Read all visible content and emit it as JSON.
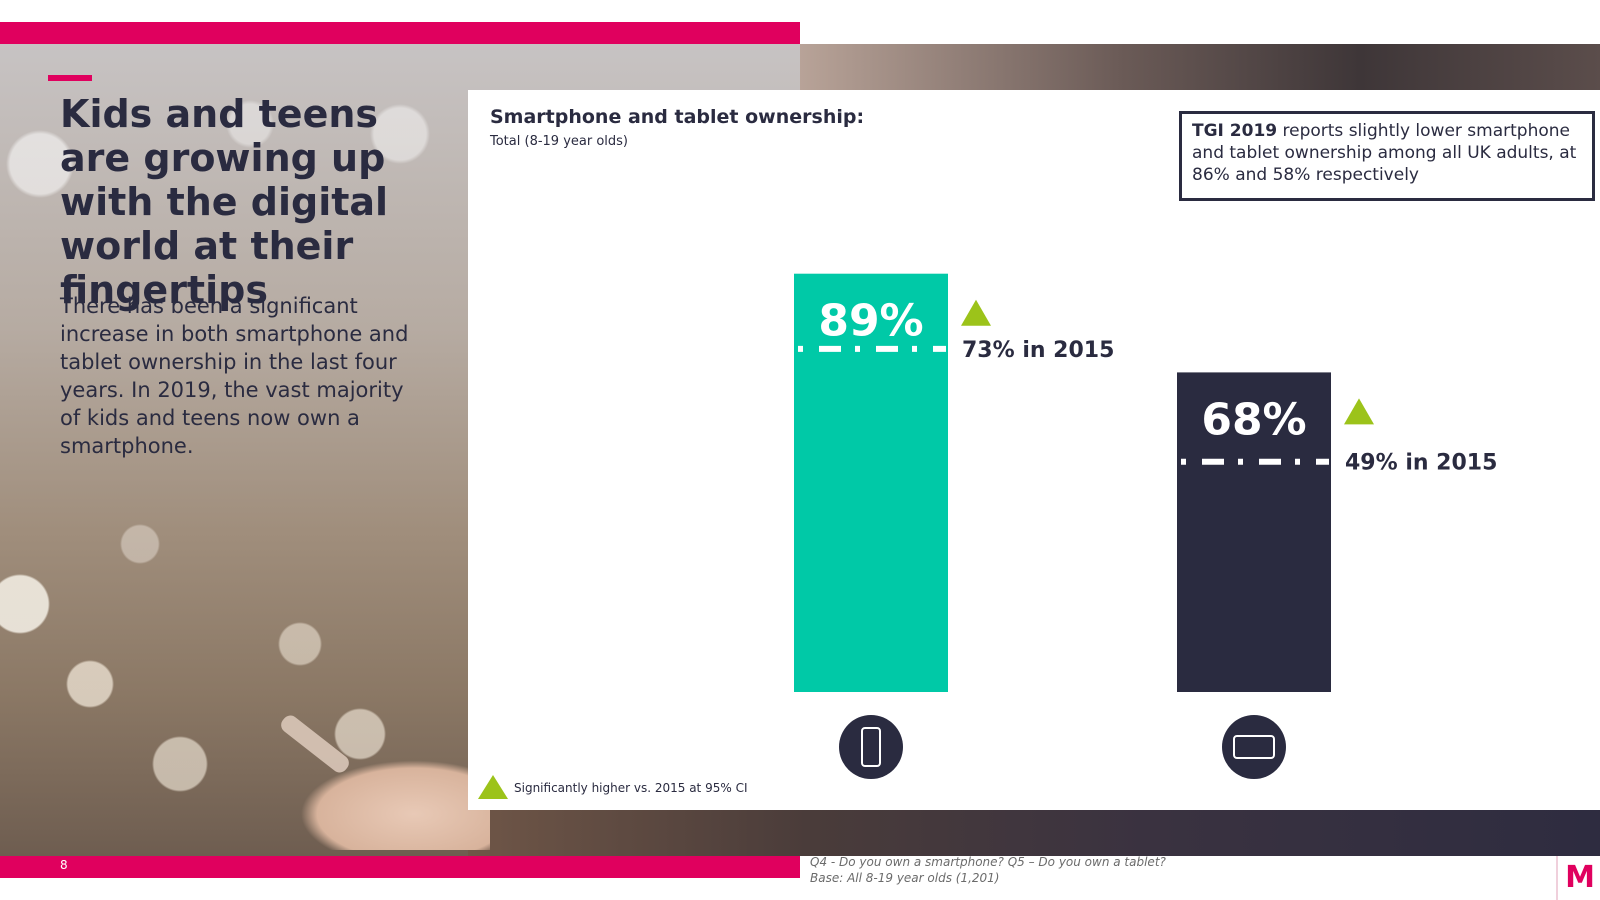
{
  "slide": {
    "headline": "Kids and teens are growing up with the digital world at their fingertips",
    "body": "There has been a significant increase in both smartphone and tablet ownership in the last four years.  In 2019, the vast majority of kids and teens now own a smartphone.",
    "page_number": "8",
    "logo_letter": "M"
  },
  "callout": {
    "bold": "TGI 2019",
    "text": " reports slightly lower smartphone and tablet ownership among all UK adults, at 86% and 58% respectively"
  },
  "legend": {
    "significance_label": "Significantly higher vs. 2015 at 95% CI"
  },
  "footnote": {
    "line1": "Q4 - Do you own a smartphone? Q5 – Do you own a tablet?",
    "line2": "Base: All 8-19 year olds (1,201)"
  },
  "colors": {
    "brand_pink": "#e0005e",
    "smartphone_bar": "#00c9a7",
    "tablet_bar": "#2a2b40",
    "significance_marker": "#9cc31a"
  },
  "chart_data": {
    "type": "bar",
    "title": "Smartphone and tablet ownership:",
    "subtitle": "Total (8-19 year olds)",
    "categories": [
      "Smartphone",
      "Tablet"
    ],
    "category_icons": [
      "smartphone-icon",
      "tablet-icon"
    ],
    "values": [
      89,
      68
    ],
    "value_labels": [
      "89%",
      "68%"
    ],
    "comparison_2015": [
      73,
      49
    ],
    "comparison_labels": [
      "73% in 2015",
      "49% in 2015"
    ],
    "significantly_higher": [
      true,
      true
    ],
    "ylim": [
      0,
      100
    ],
    "grid": false,
    "legend": "bottom-left"
  }
}
